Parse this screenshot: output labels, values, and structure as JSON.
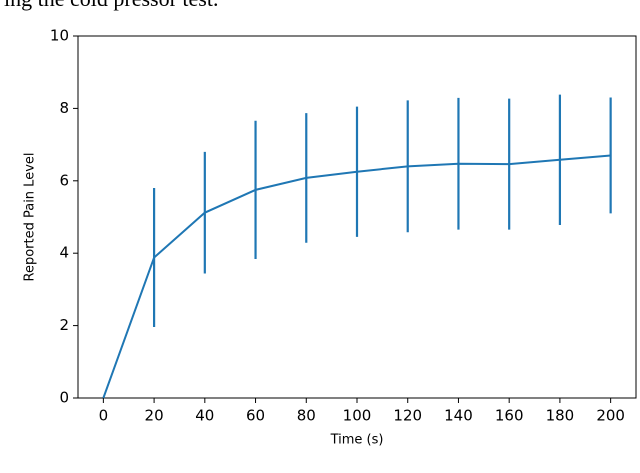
{
  "header_text": "ing the cold pressor test.",
  "chart_data": {
    "type": "errorbar-line",
    "xlabel": "Time (s)",
    "ylabel": "Reported Pain Level",
    "x": [
      0,
      20,
      40,
      60,
      80,
      100,
      120,
      140,
      160,
      180,
      200
    ],
    "values": [
      0,
      3.88,
      5.12,
      5.75,
      6.08,
      6.25,
      6.4,
      6.47,
      6.46,
      6.58,
      6.7
    ],
    "errors": [
      0,
      1.92,
      1.68,
      1.91,
      1.79,
      1.8,
      1.82,
      1.82,
      1.81,
      1.8,
      1.6
    ],
    "color": "#1f77b4",
    "xlim": [
      -10,
      210
    ],
    "xticks": [
      0,
      20,
      40,
      60,
      80,
      100,
      120,
      140,
      160,
      180,
      200
    ],
    "ylim": [
      0,
      10
    ],
    "yticks": [
      0,
      2,
      4,
      6,
      8,
      10
    ]
  }
}
